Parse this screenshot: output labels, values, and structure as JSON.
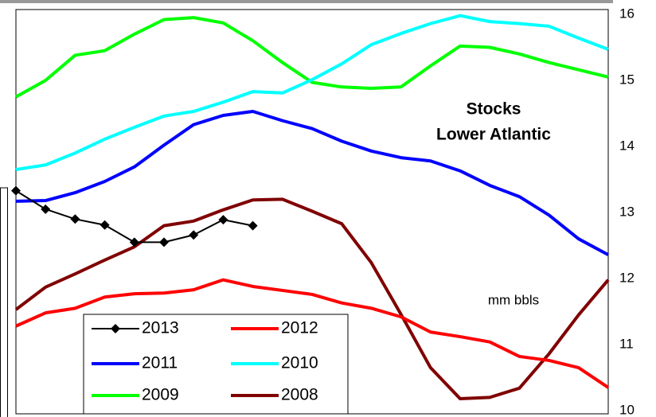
{
  "chart_data": {
    "type": "line",
    "title": "Stocks",
    "subtitle": "Lower Atlantic",
    "annotation": "mm bbls",
    "categories": [
      null,
      null,
      null,
      null,
      null,
      null,
      null,
      null,
      null,
      null,
      null,
      null,
      null,
      null,
      null,
      null,
      null,
      null,
      null,
      null,
      null
    ],
    "ylim": [
      10,
      16
    ],
    "yticks": [
      10,
      11,
      12,
      13,
      14,
      15,
      16
    ],
    "grid": false,
    "y_axis_side": "right",
    "series": [
      {
        "name": "2013",
        "color": "#000000",
        "marker": "diamond",
        "values": [
          13.33,
          13.05,
          12.9,
          12.81,
          12.55,
          12.55,
          12.66,
          12.89,
          12.8,
          null,
          null,
          null,
          null,
          null,
          null,
          null,
          null,
          null,
          null,
          null,
          null
        ]
      },
      {
        "name": "2012",
        "color": "#ff0000",
        "values": [
          11.28,
          11.48,
          11.55,
          11.72,
          11.77,
          11.78,
          11.83,
          11.98,
          11.88,
          11.82,
          11.76,
          11.63,
          11.55,
          11.42,
          11.19,
          11.12,
          11.04,
          10.82,
          10.76,
          10.65,
          10.35
        ]
      },
      {
        "name": "2011",
        "color": "#0000ff",
        "values": [
          13.17,
          13.18,
          13.3,
          13.47,
          13.69,
          14.02,
          14.33,
          14.47,
          14.53,
          14.39,
          14.27,
          14.08,
          13.93,
          13.83,
          13.78,
          13.63,
          13.41,
          13.24,
          12.96,
          12.6,
          12.36
        ]
      },
      {
        "name": "2010",
        "color": "#00ffff",
        "values": [
          13.65,
          13.72,
          13.9,
          14.11,
          14.29,
          14.46,
          14.53,
          14.67,
          14.83,
          14.81,
          15.01,
          15.25,
          15.54,
          15.71,
          15.86,
          15.98,
          15.89,
          15.86,
          15.82,
          15.64,
          15.47
        ]
      },
      {
        "name": "2009",
        "color": "#00ff00",
        "values": [
          14.75,
          15.0,
          15.38,
          15.45,
          15.7,
          15.92,
          15.95,
          15.87,
          15.6,
          15.27,
          14.97,
          14.9,
          14.88,
          14.9,
          15.22,
          15.52,
          15.5,
          15.4,
          15.27,
          15.16,
          15.05
        ]
      },
      {
        "name": "2008",
        "color": "#800000",
        "values": [
          11.53,
          11.87,
          12.07,
          12.28,
          12.48,
          12.8,
          12.87,
          13.04,
          13.19,
          13.2,
          13.02,
          12.83,
          12.24,
          11.46,
          10.65,
          10.18,
          10.2,
          10.34,
          10.86,
          11.45,
          11.98
        ]
      }
    ]
  }
}
